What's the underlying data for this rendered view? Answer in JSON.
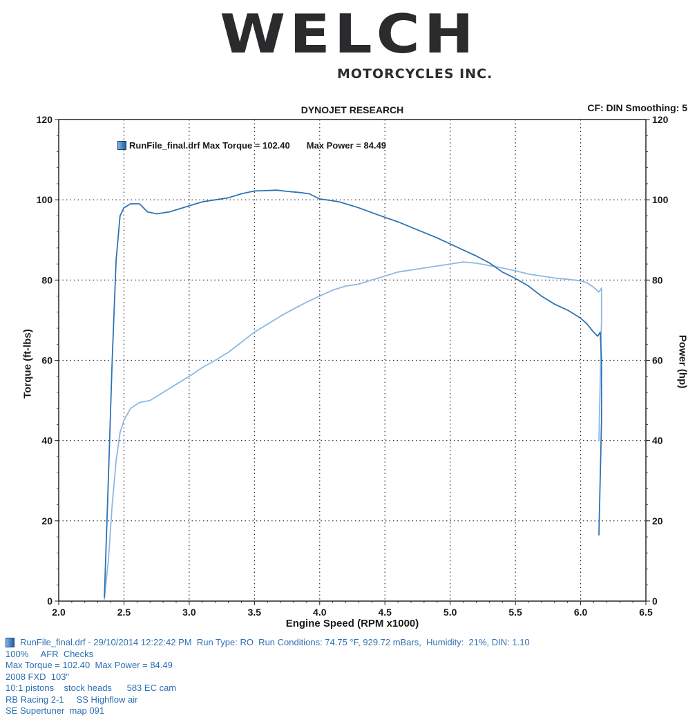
{
  "logo": {
    "main": "WELCH",
    "sub": "MOTORCYCLES INC."
  },
  "chart_data": {
    "type": "line",
    "title": "DYNOJET RESEARCH",
    "corner_note": "CF: DIN  Smoothing: 5",
    "xlabel": "Engine Speed (RPM x1000)",
    "ylabel": "Torque (ft-lbs)",
    "ylabel_right": "Power (hp)",
    "xlim": [
      2.0,
      6.5
    ],
    "ylim": [
      0,
      120
    ],
    "x_ticks": [
      "2.0",
      "2.5",
      "3.0",
      "3.5",
      "4.0",
      "4.5",
      "5.0",
      "5.5",
      "6.0",
      "6.5"
    ],
    "y_ticks": [
      "0",
      "20",
      "40",
      "60",
      "80",
      "100",
      "120"
    ],
    "grid": true,
    "legend": {
      "position": "top-left",
      "run": "RunFile_final.drf",
      "max_torque_text": "Max Torque = 102.40",
      "max_power_text": "Max Power = 84.49"
    },
    "colors": {
      "torque": "#2f72b4",
      "power": "#8cb8e2"
    },
    "series": [
      {
        "key": "torque",
        "x": [
          2.35,
          2.38,
          2.41,
          2.44,
          2.47,
          2.5,
          2.55,
          2.62,
          2.68,
          2.75,
          2.85,
          3.0,
          3.1,
          3.2,
          3.3,
          3.4,
          3.5,
          3.6,
          3.67,
          3.75,
          3.85,
          3.92,
          4.0,
          4.05,
          4.15,
          4.3,
          4.45,
          4.6,
          4.75,
          4.9,
          5.0,
          5.1,
          5.2,
          5.3,
          5.4,
          5.5,
          5.6,
          5.7,
          5.8,
          5.9,
          6.0,
          6.05,
          6.1,
          6.13,
          6.15,
          6.16,
          6.16,
          6.14
        ],
        "y": [
          1,
          30,
          60,
          85,
          96,
          98,
          99,
          99,
          97,
          96.5,
          97,
          98.5,
          99.5,
          100,
          100.5,
          101.5,
          102.2,
          102.3,
          102.4,
          102.1,
          101.8,
          101.5,
          100.2,
          100,
          99.5,
          98,
          96.2,
          94.5,
          92.5,
          90.5,
          89,
          87.5,
          86,
          84.3,
          82,
          80.4,
          78.5,
          76,
          74,
          72.5,
          70.5,
          69,
          67,
          66,
          67,
          60,
          45,
          16.5
        ]
      },
      {
        "key": "power",
        "x": [
          2.35,
          2.38,
          2.41,
          2.44,
          2.47,
          2.5,
          2.55,
          2.62,
          2.7,
          2.8,
          2.9,
          3.0,
          3.1,
          3.2,
          3.3,
          3.4,
          3.5,
          3.6,
          3.7,
          3.8,
          3.9,
          4.0,
          4.1,
          4.2,
          4.3,
          4.4,
          4.5,
          4.6,
          4.7,
          4.8,
          4.9,
          5.0,
          5.1,
          5.2,
          5.3,
          5.4,
          5.5,
          5.6,
          5.7,
          5.8,
          5.9,
          6.0,
          6.05,
          6.1,
          6.14,
          6.16,
          6.16,
          6.14
        ],
        "y": [
          0.5,
          10,
          24,
          35,
          42,
          45,
          48,
          49.5,
          50,
          52,
          54,
          56,
          58.2,
          60,
          62,
          64.5,
          67,
          69,
          71,
          72.8,
          74.5,
          76,
          77.5,
          78.5,
          79,
          80,
          81,
          82,
          82.5,
          83,
          83.5,
          84,
          84.5,
          84.2,
          83.6,
          83,
          82.3,
          81.5,
          81,
          80.5,
          80.2,
          79.8,
          79.3,
          78.2,
          77,
          78,
          70,
          40
        ]
      }
    ]
  },
  "info": {
    "line1": "RunFile_final.drf - 29/10/2014 12:22:42 PM  Run Type: RO  Run Conditions: 74.75 °F, 929.72 mBars,  Humidity:  21%, DIN: 1.10",
    "line2": "100%     AFR  Checks",
    "line3": "Max Torque = 102.40  Max Power = 84.49",
    "line4": "2008 FXD  103\"",
    "line5": "10:1 pistons    stock heads      583 EC cam",
    "line6": "RB Racing 2-1     SS Highflow air",
    "line7": "SE Supertuner  map 091"
  }
}
